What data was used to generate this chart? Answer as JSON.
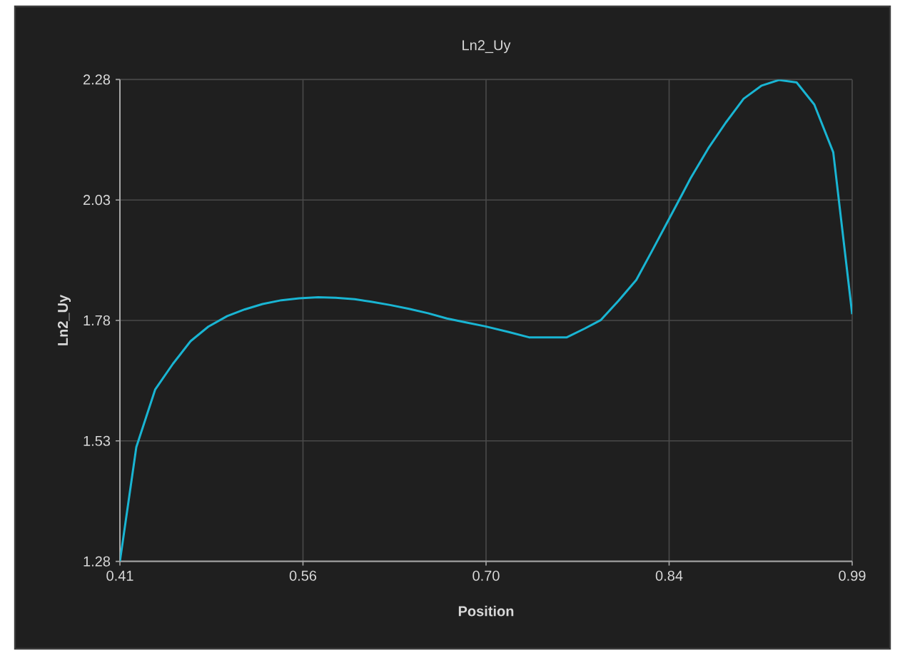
{
  "chart_data": {
    "type": "line",
    "title": "Ln2_Uy",
    "xlabel": "Position",
    "ylabel": "Ln2_Uy",
    "x": [
      0.41,
      0.423,
      0.438,
      0.452,
      0.466,
      0.48,
      0.495,
      0.509,
      0.523,
      0.538,
      0.552,
      0.567,
      0.581,
      0.596,
      0.609,
      0.624,
      0.639,
      0.654,
      0.669,
      0.684,
      0.699,
      0.718,
      0.734,
      0.748,
      0.764,
      0.778,
      0.791,
      0.805,
      0.819,
      0.831,
      0.843,
      0.856,
      0.862,
      0.876,
      0.89,
      0.904,
      0.918,
      0.932,
      0.946,
      0.96,
      0.975,
      0.99
    ],
    "values": [
      1.28,
      1.517,
      1.637,
      1.69,
      1.737,
      1.767,
      1.789,
      1.803,
      1.814,
      1.822,
      1.826,
      1.828,
      1.827,
      1.824,
      1.819,
      1.812,
      1.804,
      1.795,
      1.784,
      1.776,
      1.768,
      1.756,
      1.745,
      1.745,
      1.745,
      1.763,
      1.781,
      1.821,
      1.864,
      1.922,
      1.981,
      2.045,
      2.075,
      2.137,
      2.191,
      2.24,
      2.267,
      2.279,
      2.274,
      2.228,
      2.129,
      1.793
    ],
    "color": "#19b5d3",
    "xlim": [
      0.41,
      0.99
    ],
    "ylim": [
      1.28,
      2.28
    ],
    "xticks": [
      0.41,
      {
        "value": 0.555,
        "label": "0.56"
      },
      {
        "value": 0.7,
        "label": "0.70"
      },
      {
        "value": 0.845,
        "label": "0.84"
      },
      0.99
    ],
    "yticks": [
      1.28,
      1.53,
      1.78,
      2.03,
      2.28
    ],
    "grid": true,
    "line_style": "solid"
  }
}
